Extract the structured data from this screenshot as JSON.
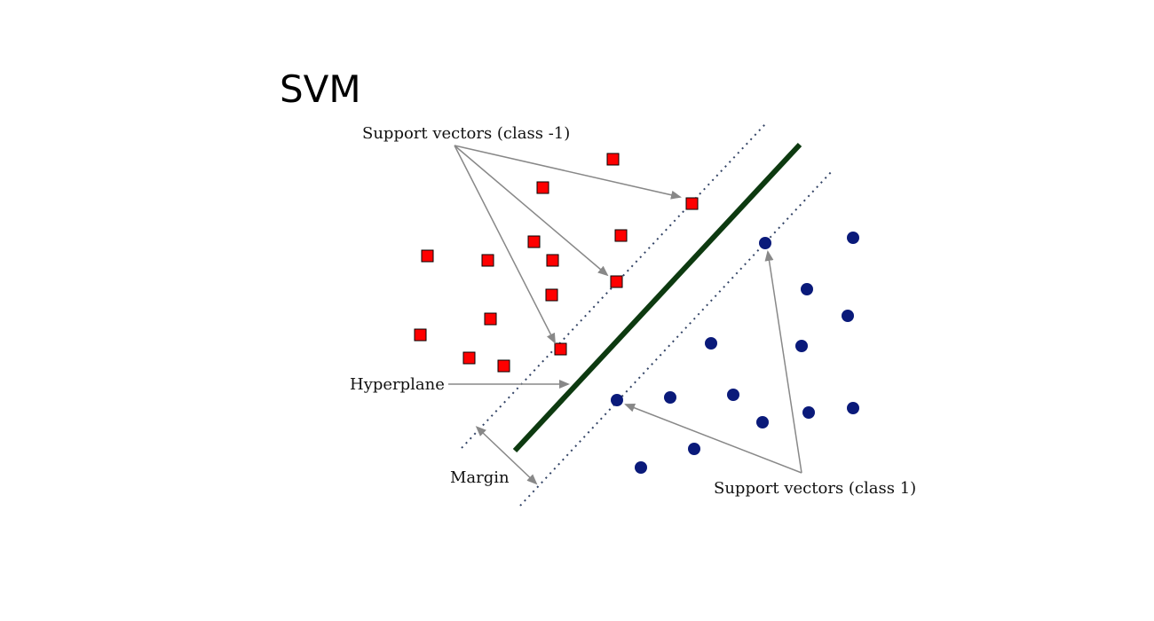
{
  "slide": {
    "title": "SVM"
  },
  "labels": {
    "support_neg": "Support vectors (class -1)",
    "hyperplane": "Hyperplane",
    "margin": "Margin",
    "support_pos": "Support vectors (class 1)"
  },
  "colors": {
    "class_neg": "#ff0000",
    "class_pos": "#0a1a7a",
    "hyperplane": "#0d3a10",
    "margin_line": "#334466",
    "arrow": "#888888"
  },
  "legend": {
    "class_neg_shape": "square",
    "class_pos_shape": "circle"
  }
}
